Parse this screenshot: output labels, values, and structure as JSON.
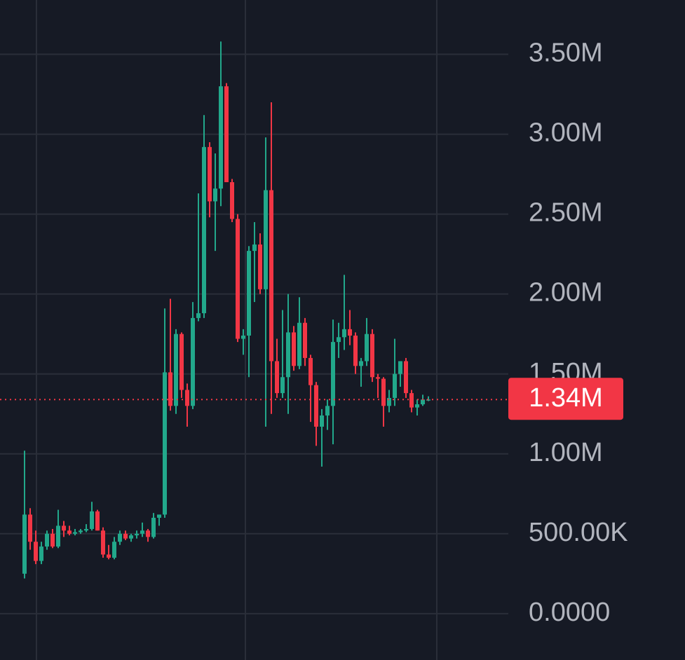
{
  "chart_data": {
    "type": "candlestick",
    "open": [
      250000,
      620000,
      450000,
      330000,
      420000,
      500000,
      420000,
      550000,
      520000,
      500000,
      510000,
      520000,
      530000,
      640000,
      520000,
      370000,
      350000,
      450000,
      500000,
      470000,
      490000,
      500000,
      520000,
      480000,
      600000,
      620000,
      1510000,
      1300000,
      1750000,
      1400000,
      1300000,
      1850000,
      1880000,
      2920000,
      2580000,
      2660000,
      3300000,
      2700000,
      2470000,
      1720000,
      1740000,
      2270000,
      2310000,
      2030000,
      2650000,
      1580000,
      1380000,
      1480000,
      1760000,
      1550000,
      1820000,
      1600000,
      1430000,
      1170000,
      1240000,
      1300000,
      1700000,
      1730000,
      1780000,
      1740000,
      1550000,
      1580000,
      1750000,
      1480000,
      1470000,
      1300000,
      1350000,
      1500000,
      1580000,
      1380000,
      1290000,
      1310000,
      1340000
    ],
    "high": [
      1020000,
      660000,
      520000,
      450000,
      520000,
      530000,
      650000,
      580000,
      550000,
      530000,
      530000,
      560000,
      700000,
      650000,
      540000,
      430000,
      480000,
      520000,
      520000,
      500000,
      520000,
      570000,
      530000,
      630000,
      620000,
      1910000,
      1970000,
      1780000,
      1760000,
      1440000,
      1950000,
      2630000,
      3120000,
      2950000,
      2880000,
      3580000,
      3320000,
      2720000,
      2500000,
      1780000,
      2300000,
      2450000,
      2380000,
      2980000,
      3200000,
      1720000,
      1900000,
      2000000,
      1800000,
      1980000,
      1850000,
      1620000,
      1450000,
      1280000,
      1340000,
      1840000,
      1820000,
      2120000,
      1900000,
      1760000,
      1600000,
      1850000,
      1780000,
      1500000,
      1480000,
      1400000,
      1720000,
      1580000,
      1600000,
      1400000,
      1340000,
      1370000,
      1360000
    ],
    "low": [
      220000,
      400000,
      310000,
      310000,
      400000,
      410000,
      410000,
      480000,
      490000,
      490000,
      500000,
      510000,
      520000,
      520000,
      350000,
      340000,
      340000,
      430000,
      460000,
      450000,
      470000,
      480000,
      450000,
      470000,
      550000,
      600000,
      1270000,
      1250000,
      1350000,
      1170000,
      1280000,
      1830000,
      1850000,
      2480000,
      2270000,
      2550000,
      2700000,
      2450000,
      1700000,
      1620000,
      1480000,
      1950000,
      2000000,
      1170000,
      1250000,
      1350000,
      1350000,
      1250000,
      1520000,
      1530000,
      1550000,
      1200000,
      1050000,
      920000,
      1150000,
      1060000,
      1600000,
      1650000,
      1680000,
      1500000,
      1420000,
      1550000,
      1450000,
      1350000,
      1170000,
      1260000,
      1300000,
      1420000,
      1350000,
      1260000,
      1240000,
      1300000,
      1330000
    ],
    "close": [
      620000,
      450000,
      330000,
      420000,
      500000,
      420000,
      550000,
      520000,
      500000,
      510000,
      520000,
      530000,
      640000,
      520000,
      370000,
      350000,
      450000,
      500000,
      470000,
      490000,
      500000,
      520000,
      480000,
      600000,
      620000,
      1510000,
      1300000,
      1750000,
      1400000,
      1300000,
      1850000,
      1880000,
      2920000,
      2580000,
      2660000,
      3300000,
      2700000,
      2470000,
      1720000,
      1740000,
      2270000,
      2310000,
      2030000,
      2650000,
      1580000,
      1380000,
      1480000,
      1760000,
      1550000,
      1820000,
      1600000,
      1430000,
      1170000,
      1240000,
      1300000,
      1700000,
      1730000,
      1780000,
      1740000,
      1550000,
      1580000,
      1750000,
      1480000,
      1470000,
      1300000,
      1350000,
      1500000,
      1580000,
      1380000,
      1290000,
      1310000,
      1340000,
      1340000
    ],
    "up_color": "#22a88b",
    "down_color": "#f23645",
    "ylim": [
      -290000,
      3840000
    ],
    "yticks": [
      {
        "value": 0,
        "label": "0.0000"
      },
      {
        "value": 500000,
        "label": "500.00K"
      },
      {
        "value": 1000000,
        "label": "1.00M"
      },
      {
        "value": 1500000,
        "label": "1.50M"
      },
      {
        "value": 2000000,
        "label": "2.00M"
      },
      {
        "value": 2500000,
        "label": "2.50M"
      },
      {
        "value": 3000000,
        "label": "3.00M"
      },
      {
        "value": 3500000,
        "label": "3.50M"
      }
    ],
    "grid": true,
    "last_price": {
      "value": 1340000,
      "label": "1.34M"
    }
  }
}
